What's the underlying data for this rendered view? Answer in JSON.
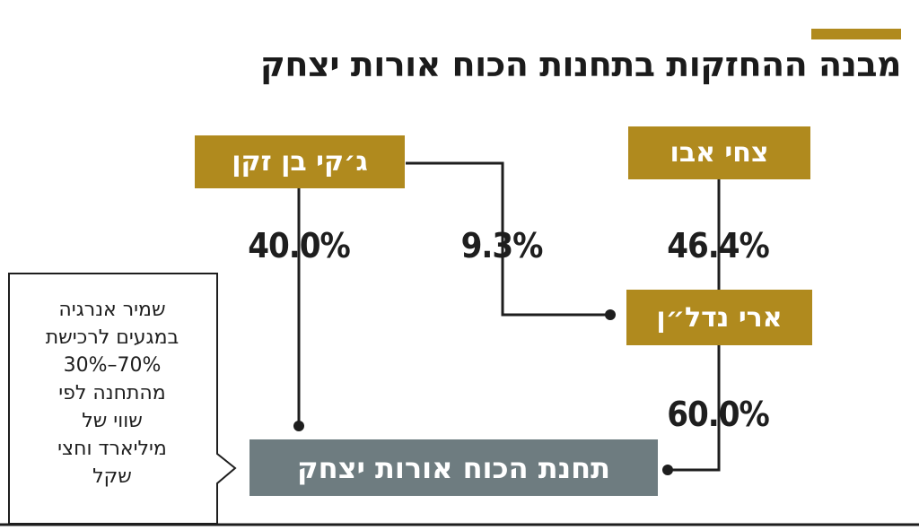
{
  "title": "מבנה ההחזקות בתחנות הכוח אורות יצחק",
  "colors": {
    "gold": "#B08A1E",
    "plant": "#6E7C80",
    "line": "#1e1e1e",
    "text": "#1e1e1e"
  },
  "nodes": {
    "tzachi": "צחי אבו",
    "jackie": "ג׳קי בן זקן",
    "ari": "ארי נדל״ן",
    "plant": "תחנת הכוח אורות יצחק"
  },
  "stakes": {
    "jackie_plant": "40.0%",
    "jackie_ari": "9.3%",
    "tzachi_ari": "46.4%",
    "ari_plant": "60.0%"
  },
  "callout": {
    "lines": [
      "שמיר אנרגיה",
      "במגעים לרכישת",
      "30%–70%",
      "מהתחנה לפי",
      "שווי של",
      "מיליארד וחצי",
      "שקל"
    ]
  }
}
